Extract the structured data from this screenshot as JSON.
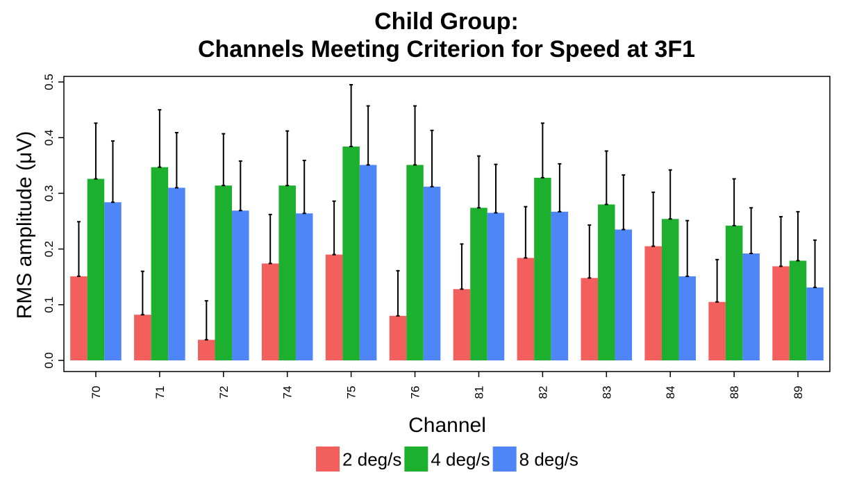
{
  "chart_data": {
    "type": "bar",
    "title": [
      "Child Group:",
      "Channels Meeting Criterion for Speed at 3F1"
    ],
    "xlabel": "Channel",
    "ylabel": "RMS amplitude (μV)",
    "ylim": [
      -0.02,
      0.51
    ],
    "yticks": [
      0.0,
      0.1,
      0.2,
      0.3,
      0.4,
      0.5
    ],
    "ytick_labels": [
      "0.0",
      "0.1",
      "0.2",
      "0.3",
      "0.4",
      "0.5"
    ],
    "categories": [
      "70",
      "71",
      "72",
      "74",
      "75",
      "76",
      "81",
      "82",
      "83",
      "84",
      "88",
      "89"
    ],
    "series": [
      {
        "name": "2 deg/s",
        "color": "#F25F5C",
        "values": [
          0.151,
          0.082,
          0.037,
          0.174,
          0.19,
          0.08,
          0.128,
          0.184,
          0.148,
          0.205,
          0.105,
          0.169
        ],
        "errors": [
          0.098,
          0.078,
          0.07,
          0.088,
          0.096,
          0.081,
          0.081,
          0.092,
          0.095,
          0.097,
          0.076,
          0.089
        ]
      },
      {
        "name": "4 deg/s",
        "color": "#1DB02F",
        "values": [
          0.326,
          0.347,
          0.314,
          0.314,
          0.384,
          0.351,
          0.274,
          0.328,
          0.28,
          0.254,
          0.242,
          0.179
        ],
        "errors": [
          0.1,
          0.103,
          0.093,
          0.098,
          0.111,
          0.106,
          0.093,
          0.098,
          0.096,
          0.088,
          0.084,
          0.088
        ]
      },
      {
        "name": "8 deg/s",
        "color": "#4E86F8",
        "values": [
          0.284,
          0.31,
          0.269,
          0.264,
          0.351,
          0.312,
          0.265,
          0.267,
          0.235,
          0.151,
          0.192,
          0.131
        ],
        "errors": [
          0.11,
          0.099,
          0.089,
          0.095,
          0.106,
          0.101,
          0.087,
          0.086,
          0.098,
          0.1,
          0.082,
          0.085
        ]
      }
    ],
    "legend_position": "bottom",
    "grid": false
  }
}
